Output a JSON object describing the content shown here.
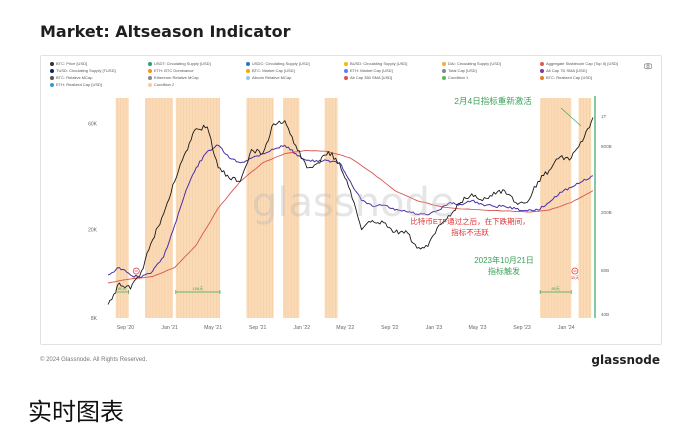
{
  "page": {
    "title": "Market: Altseason Indicator",
    "footer_copyright": "© 2024 Glassnode. All Rights Reserved.",
    "footer_brand": "glassnode",
    "watermark": "glassnode",
    "caption": "实时图表"
  },
  "legend": [
    {
      "label": "BTC: Price [USD]",
      "color": "#333333"
    },
    {
      "label": "USDT: Circulating Supply [USD]",
      "color": "#26a17b"
    },
    {
      "label": "USDC: Circulating Supply [USD]",
      "color": "#2775ca"
    },
    {
      "label": "BUSD: Circulating Supply [USD]",
      "color": "#f0b90b"
    },
    {
      "label": "DAI: Circulating Supply [USD]",
      "color": "#f5ac37"
    },
    {
      "label": "Aggregate Stablecoin Cap (Top 5) [USD]",
      "color": "#e05a5a"
    },
    {
      "label": "TUSD: Circulating Supply [TUSD]",
      "color": "#002868"
    },
    {
      "label": "ETH: BTC Dominance",
      "color": "#f7931a"
    },
    {
      "label": "BTC: Market Cap [USD]",
      "color": "#f2a900"
    },
    {
      "label": "ETH: Market Cap [USD]",
      "color": "#627eea"
    },
    {
      "label": "Total Cap [USD]",
      "color": "#888888"
    },
    {
      "label": "Alt Cap 7D SMA [USD]",
      "color": "#7d3c98"
    },
    {
      "label": "BTC: Relative MCap",
      "color": "#555555"
    },
    {
      "label": "Ethereum Relative MCap",
      "color": "#8a8a8a"
    },
    {
      "label": "Altcoin Relative MCap",
      "color": "#a0c4e8"
    },
    {
      "label": "Alt Cap 350 SMA [USD]",
      "color": "#d9534f"
    },
    {
      "label": "Condition 1",
      "color": "#5cb85c"
    },
    {
      "label": "BTC: Realized Cap [USD]",
      "color": "#e67e22"
    },
    {
      "label": "ETH: Realized Cap [USD]",
      "color": "#3498db"
    },
    {
      "label": "Condition 2",
      "color": "#f5cba7"
    }
  ],
  "icons": {
    "camera": "camera-icon"
  },
  "colors": {
    "btc_price": "#1a1a1a",
    "alt_cap_7d": "#4b2fa8",
    "alt_cap_350": "#d9534f",
    "condition_fill": "#f8cfa0",
    "green_line": "#3aa35a",
    "green_text": "#3aa35a",
    "red_text": "#e03131",
    "axis_text": "#666666"
  },
  "chart_data": {
    "type": "line",
    "title": "Market: Altseason Indicator",
    "x_ticks": [
      "Sep '20",
      "Jan '21",
      "May '21",
      "Sep '21",
      "Jan '22",
      "May '22",
      "Sep '22",
      "Jan '23",
      "May '23",
      "Sep '23",
      "Jan '24"
    ],
    "x_range": [
      "2020-07",
      "2024-03"
    ],
    "y_left_ticks": [
      "8K",
      "20K",
      "60K"
    ],
    "y_left_log": true,
    "y_left_range": [
      8000,
      80000
    ],
    "y_right_ticks": [
      "1T",
      "800B",
      "200B",
      "80B",
      "40B"
    ],
    "series": [
      {
        "name": "BTC: Price [USD]",
        "x": [
          "2020-07",
          "2020-08",
          "2020-09",
          "2020-10",
          "2020-11",
          "2020-12",
          "2021-01",
          "2021-02",
          "2021-03",
          "2021-04",
          "2021-05",
          "2021-06",
          "2021-07",
          "2021-08",
          "2021-09",
          "2021-10",
          "2021-11",
          "2021-12",
          "2022-01",
          "2022-02",
          "2022-03",
          "2022-04",
          "2022-05",
          "2022-06",
          "2022-07",
          "2022-08",
          "2022-09",
          "2022-10",
          "2022-11",
          "2022-12",
          "2023-01",
          "2023-02",
          "2023-03",
          "2023-04",
          "2023-05",
          "2023-06",
          "2023-07",
          "2023-08",
          "2023-09",
          "2023-10",
          "2023-11",
          "2023-12",
          "2024-01",
          "2024-02",
          "2024-03"
        ],
        "values": [
          9200,
          11500,
          10800,
          13000,
          18000,
          23500,
          33000,
          45000,
          57000,
          58000,
          38000,
          34000,
          33000,
          46000,
          44000,
          60000,
          62000,
          48000,
          38000,
          40000,
          45000,
          40000,
          30000,
          20000,
          22000,
          21500,
          19500,
          19800,
          16500,
          16800,
          21000,
          23000,
          26500,
          29000,
          27000,
          29500,
          30000,
          26500,
          26500,
          33000,
          37000,
          42500,
          42000,
          50000,
          64000
        ]
      },
      {
        "name": "Alt Cap 7D SMA [USD]",
        "x": [
          "2020-07",
          "2020-08",
          "2020-09",
          "2020-10",
          "2020-11",
          "2020-12",
          "2021-01",
          "2021-02",
          "2021-03",
          "2021-04",
          "2021-05",
          "2021-06",
          "2021-07",
          "2021-08",
          "2021-09",
          "2021-10",
          "2021-11",
          "2021-12",
          "2022-01",
          "2022-02",
          "2022-03",
          "2022-04",
          "2022-05",
          "2022-06",
          "2022-07",
          "2022-08",
          "2022-09",
          "2022-10",
          "2022-11",
          "2022-12",
          "2023-01",
          "2023-02",
          "2023-03",
          "2023-04",
          "2023-05",
          "2023-06",
          "2023-07",
          "2023-08",
          "2023-09",
          "2023-10",
          "2023-11",
          "2023-12",
          "2024-01",
          "2024-02",
          "2024-03"
        ],
        "values": [
          12500,
          13500,
          12500,
          12200,
          13000,
          15000,
          21000,
          30000,
          38000,
          45000,
          48000,
          42000,
          40000,
          42000,
          44000,
          46000,
          48000,
          44000,
          41000,
          40500,
          41000,
          40000,
          33000,
          27000,
          25500,
          25800,
          24500,
          24200,
          23500,
          23300,
          24500,
          26500,
          26000,
          27000,
          26000,
          25500,
          25500,
          24800,
          24300,
          24500,
          26500,
          29500,
          31000,
          33000,
          35000
        ]
      },
      {
        "name": "Alt Cap 350 SMA [USD]",
        "x": [
          "2020-07",
          "2020-09",
          "2020-11",
          "2021-01",
          "2021-03",
          "2021-05",
          "2021-07",
          "2021-09",
          "2021-11",
          "2022-01",
          "2022-03",
          "2022-05",
          "2022-07",
          "2022-09",
          "2022-11",
          "2023-01",
          "2023-03",
          "2023-05",
          "2023-07",
          "2023-09",
          "2023-11",
          "2024-01",
          "2024-03"
        ],
        "values": [
          11500,
          12000,
          12300,
          13500,
          17000,
          25000,
          33000,
          40000,
          44000,
          45500,
          45000,
          42000,
          36000,
          30000,
          27000,
          25500,
          24800,
          24500,
          24300,
          24000,
          24500,
          26500,
          30000
        ]
      }
    ],
    "condition_periods": [
      [
        "2020-08-05",
        "2020-09-10"
      ],
      [
        "2020-10-25",
        "2021-01-10"
      ],
      [
        "2021-01-18",
        "2021-05-20"
      ],
      [
        "2021-08-01",
        "2021-10-15"
      ],
      [
        "2021-11-10",
        "2021-12-25"
      ],
      [
        "2022-03-05",
        "2022-04-10"
      ],
      [
        "2023-10-21",
        "2024-01-15"
      ],
      [
        "2024-02-04",
        "2024-03-10"
      ]
    ],
    "bracket_labels": [
      "80天",
      "106天",
      "80天"
    ],
    "marker_labels": [
      "30天",
      "35天"
    ],
    "annotations": [
      {
        "text": "2月4日指标重新激活",
        "color": "green"
      },
      {
        "text": "比特币ETF通过之后，在下跌期间，",
        "color": "red"
      },
      {
        "text": "指标不活跃",
        "color": "red"
      },
      {
        "text": "2023年10月21日",
        "color": "green"
      },
      {
        "text": "指标触发",
        "color": "green"
      }
    ]
  }
}
